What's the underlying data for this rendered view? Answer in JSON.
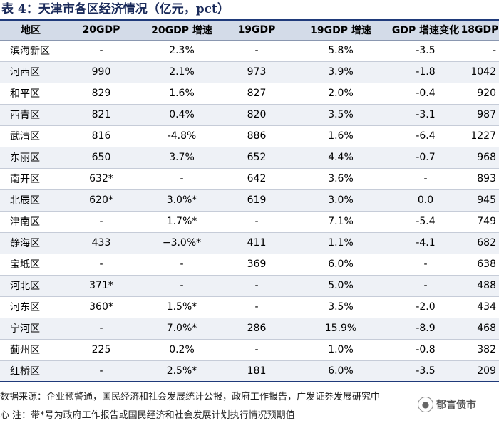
{
  "title": "表 4：天津市各区经济情况（亿元，pct）",
  "columns": [
    "地区",
    "20GDP",
    "20GDP 增速",
    "19GDP",
    "19GDP 增速",
    "GDP 增速变化",
    "18GDP"
  ],
  "rows": [
    [
      "滨海新区",
      "-",
      "2.3%",
      "-",
      "5.8%",
      "-3.5",
      "-"
    ],
    [
      "河西区",
      "990",
      "2.1%",
      "973",
      "3.9%",
      "-1.8",
      "1042"
    ],
    [
      "和平区",
      "829",
      "1.6%",
      "827",
      "2.0%",
      "-0.4",
      "920"
    ],
    [
      "西青区",
      "821",
      "0.4%",
      "820",
      "3.5%",
      "-3.1",
      "987"
    ],
    [
      "武清区",
      "816",
      "-4.8%",
      "886",
      "1.6%",
      "-6.4",
      "1227"
    ],
    [
      "东丽区",
      "650",
      "3.7%",
      "652",
      "4.4%",
      "-0.7",
      "968"
    ],
    [
      "南开区",
      "632*",
      "-",
      "642",
      "3.6%",
      "-",
      "893"
    ],
    [
      "北辰区",
      "620*",
      "3.0%*",
      "619",
      "3.0%",
      "0.0",
      "945"
    ],
    [
      "津南区",
      "-",
      "1.7%*",
      "-",
      "7.1%",
      "-5.4",
      "749"
    ],
    [
      "静海区",
      "433",
      "−3.0%*",
      "411",
      "1.1%",
      "-4.1",
      "682"
    ],
    [
      "宝坻区",
      "-",
      "-",
      "369",
      "6.0%",
      "-",
      "638"
    ],
    [
      "河北区",
      "371*",
      "-",
      "-",
      "5.0%",
      "-",
      "488"
    ],
    [
      "河东区",
      "360*",
      "1.5%*",
      "-",
      "3.5%",
      "-2.0",
      "434"
    ],
    [
      "宁河区",
      "-",
      "7.0%*",
      "286",
      "15.9%",
      "-8.9",
      "468"
    ],
    [
      "蓟州区",
      "225",
      "0.2%",
      "-",
      "1.0%",
      "-0.8",
      "382"
    ],
    [
      "红桥区",
      "-",
      "2.5%*",
      "181",
      "6.0%",
      "-3.5",
      "209"
    ]
  ],
  "footer": {
    "source": "数据来源：企业预警通，国民经济和社会发展统计公报，政府工作报告，广发证券发展研究中",
    "note": "心  注：带*号为政府工作报告或国民经济和社会发展计划执行情况预期值"
  },
  "watermark": {
    "icon": "wechat-icon",
    "text": "郁言债市"
  }
}
